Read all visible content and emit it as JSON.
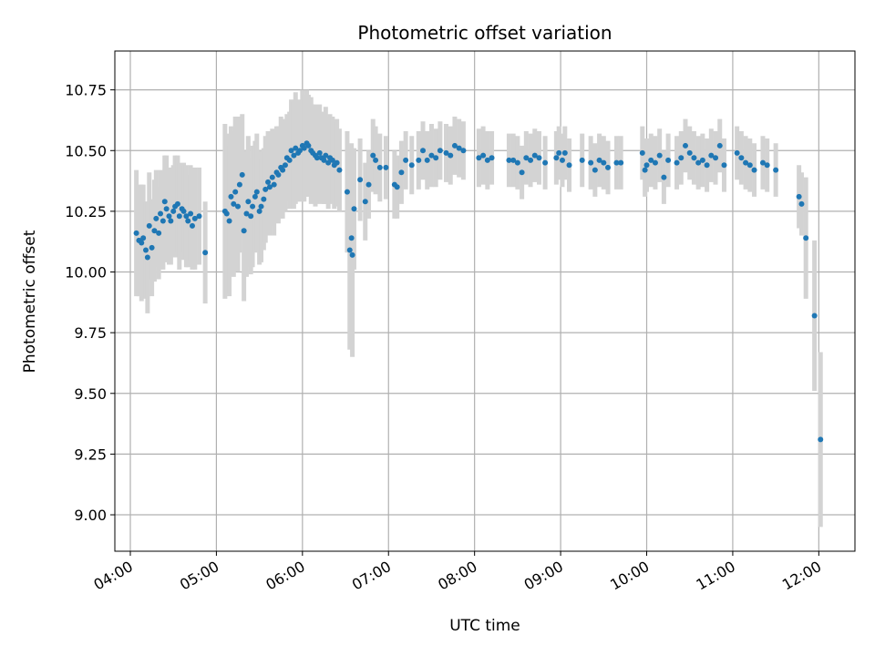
{
  "chart_data": {
    "type": "scatter",
    "title": "Photometric offset variation",
    "xlabel": "UTC time",
    "ylabel": "Photometric offset",
    "x_unit": "hours UTC",
    "xlim": [
      3.82,
      12.42
    ],
    "ylim": [
      8.85,
      10.91
    ],
    "grid": true,
    "x_ticks": [
      {
        "value": 4,
        "label": "04:00"
      },
      {
        "value": 5,
        "label": "05:00"
      },
      {
        "value": 6,
        "label": "06:00"
      },
      {
        "value": 7,
        "label": "07:00"
      },
      {
        "value": 8,
        "label": "08:00"
      },
      {
        "value": 9,
        "label": "09:00"
      },
      {
        "value": 10,
        "label": "10:00"
      },
      {
        "value": 11,
        "label": "11:00"
      },
      {
        "value": 12,
        "label": "12:00"
      }
    ],
    "y_ticks": [
      {
        "value": 9.0,
        "label": "9.00"
      },
      {
        "value": 9.25,
        "label": "9.25"
      },
      {
        "value": 9.5,
        "label": "9.50"
      },
      {
        "value": 9.75,
        "label": "9.75"
      },
      {
        "value": 10.0,
        "label": "10.00"
      },
      {
        "value": 10.25,
        "label": "10.25"
      },
      {
        "value": 10.5,
        "label": "10.50"
      },
      {
        "value": 10.75,
        "label": "10.75"
      }
    ],
    "colors": {
      "points": "#1f77b4",
      "errorbars": "#d3d3d3",
      "grid": "#b0b0b0"
    },
    "series": [
      {
        "points": [
          [
            4.07,
            10.16,
            0.26
          ],
          [
            4.1,
            10.13,
            0.23
          ],
          [
            4.13,
            10.12,
            0.24
          ],
          [
            4.15,
            10.14,
            0.22
          ],
          [
            4.18,
            10.09,
            0.2
          ],
          [
            4.2,
            10.06,
            0.23
          ],
          [
            4.22,
            10.19,
            0.22
          ],
          [
            4.25,
            10.1,
            0.2
          ],
          [
            4.28,
            10.17,
            0.21
          ],
          [
            4.3,
            10.22,
            0.2
          ],
          [
            4.33,
            10.16,
            0.19
          ],
          [
            4.35,
            10.24,
            0.18
          ],
          [
            4.38,
            10.21,
            0.2
          ],
          [
            4.4,
            10.29,
            0.19
          ],
          [
            4.42,
            10.26,
            0.22
          ],
          [
            4.45,
            10.23,
            0.2
          ],
          [
            4.47,
            10.21,
            0.18
          ],
          [
            4.5,
            10.25,
            0.19
          ],
          [
            4.52,
            10.27,
            0.21
          ],
          [
            4.55,
            10.28,
            0.2
          ],
          [
            4.57,
            10.23,
            0.22
          ],
          [
            4.6,
            10.26,
            0.18
          ],
          [
            4.62,
            10.25,
            0.2
          ],
          [
            4.65,
            10.23,
            0.21
          ],
          [
            4.67,
            10.21,
            0.19
          ],
          [
            4.7,
            10.24,
            0.2
          ],
          [
            4.72,
            10.19,
            0.18
          ],
          [
            4.75,
            10.22,
            0.21
          ],
          [
            4.8,
            10.23,
            0.2
          ],
          [
            4.87,
            10.08,
            0.21
          ],
          [
            5.1,
            10.25,
            0.36
          ],
          [
            5.12,
            10.24,
            0.33
          ],
          [
            5.15,
            10.21,
            0.31
          ],
          [
            5.17,
            10.31,
            0.29
          ],
          [
            5.2,
            10.28,
            0.3
          ],
          [
            5.22,
            10.33,
            0.31
          ],
          [
            5.25,
            10.27,
            0.27
          ],
          [
            5.27,
            10.36,
            0.28
          ],
          [
            5.3,
            10.4,
            0.25
          ],
          [
            5.32,
            10.17,
            0.29
          ],
          [
            5.35,
            10.24,
            0.26
          ],
          [
            5.37,
            10.29,
            0.27
          ],
          [
            5.4,
            10.23,
            0.24
          ],
          [
            5.42,
            10.27,
            0.25
          ],
          [
            5.45,
            10.31,
            0.23
          ],
          [
            5.47,
            10.33,
            0.24
          ],
          [
            5.5,
            10.25,
            0.22
          ],
          [
            5.52,
            10.27,
            0.23
          ],
          [
            5.55,
            10.3,
            0.21
          ],
          [
            5.57,
            10.34,
            0.22
          ],
          [
            5.6,
            10.37,
            0.21
          ],
          [
            5.62,
            10.35,
            0.2
          ],
          [
            5.65,
            10.39,
            0.2
          ],
          [
            5.67,
            10.36,
            0.21
          ],
          [
            5.7,
            10.41,
            0.19
          ],
          [
            5.72,
            10.4,
            0.2
          ],
          [
            5.75,
            10.43,
            0.21
          ],
          [
            5.77,
            10.42,
            0.2
          ],
          [
            5.8,
            10.44,
            0.19
          ],
          [
            5.82,
            10.47,
            0.18
          ],
          [
            5.85,
            10.46,
            0.2
          ],
          [
            5.87,
            10.5,
            0.21
          ],
          [
            5.9,
            10.48,
            0.22
          ],
          [
            5.92,
            10.51,
            0.23
          ],
          [
            5.95,
            10.49,
            0.2
          ],
          [
            5.97,
            10.5,
            0.21
          ],
          [
            6.0,
            10.52,
            0.23
          ],
          [
            6.02,
            10.51,
            0.22
          ],
          [
            6.05,
            10.53,
            0.22
          ],
          [
            6.07,
            10.52,
            0.21
          ],
          [
            6.1,
            10.5,
            0.22
          ],
          [
            6.12,
            10.49,
            0.2
          ],
          [
            6.15,
            10.48,
            0.21
          ],
          [
            6.17,
            10.47,
            0.19
          ],
          [
            6.2,
            10.49,
            0.2
          ],
          [
            6.22,
            10.47,
            0.19
          ],
          [
            6.25,
            10.46,
            0.18
          ],
          [
            6.27,
            10.48,
            0.2
          ],
          [
            6.3,
            10.45,
            0.19
          ],
          [
            6.32,
            10.47,
            0.18
          ],
          [
            6.35,
            10.46,
            0.18
          ],
          [
            6.37,
            10.44,
            0.18
          ],
          [
            6.4,
            10.45,
            0.18
          ],
          [
            6.43,
            10.42,
            0.17
          ],
          [
            6.52,
            10.33,
            0.25
          ],
          [
            6.55,
            10.09,
            0.41
          ],
          [
            6.57,
            10.14,
            0.39
          ],
          [
            6.58,
            10.07,
            0.42
          ],
          [
            6.6,
            10.26,
            0.25
          ],
          [
            6.67,
            10.38,
            0.17
          ],
          [
            6.73,
            10.29,
            0.16
          ],
          [
            6.77,
            10.36,
            0.14
          ],
          [
            6.82,
            10.48,
            0.15
          ],
          [
            6.85,
            10.46,
            0.14
          ],
          [
            6.9,
            10.43,
            0.14
          ],
          [
            6.97,
            10.43,
            0.13
          ],
          [
            7.07,
            10.36,
            0.14
          ],
          [
            7.1,
            10.35,
            0.13
          ],
          [
            7.15,
            10.41,
            0.13
          ],
          [
            7.2,
            10.46,
            0.12
          ],
          [
            7.27,
            10.44,
            0.12
          ],
          [
            7.35,
            10.46,
            0.12
          ],
          [
            7.4,
            10.5,
            0.12
          ],
          [
            7.45,
            10.46,
            0.12
          ],
          [
            7.5,
            10.48,
            0.13
          ],
          [
            7.55,
            10.47,
            0.12
          ],
          [
            7.6,
            10.5,
            0.12
          ],
          [
            7.67,
            10.49,
            0.12
          ],
          [
            7.72,
            10.48,
            0.12
          ],
          [
            7.77,
            10.52,
            0.12
          ],
          [
            7.82,
            10.51,
            0.12
          ],
          [
            7.87,
            10.5,
            0.12
          ],
          [
            8.05,
            10.47,
            0.12
          ],
          [
            8.1,
            10.48,
            0.12
          ],
          [
            8.15,
            10.46,
            0.12
          ],
          [
            8.2,
            10.47,
            0.11
          ],
          [
            8.4,
            10.46,
            0.11
          ],
          [
            8.45,
            10.46,
            0.11
          ],
          [
            8.5,
            10.45,
            0.11
          ],
          [
            8.55,
            10.41,
            0.11
          ],
          [
            8.6,
            10.47,
            0.11
          ],
          [
            8.65,
            10.46,
            0.11
          ],
          [
            8.7,
            10.48,
            0.11
          ],
          [
            8.75,
            10.47,
            0.11
          ],
          [
            8.82,
            10.45,
            0.11
          ],
          [
            8.95,
            10.47,
            0.11
          ],
          [
            8.98,
            10.49,
            0.11
          ],
          [
            9.02,
            10.46,
            0.11
          ],
          [
            9.05,
            10.49,
            0.11
          ],
          [
            9.1,
            10.44,
            0.11
          ],
          [
            9.25,
            10.46,
            0.11
          ],
          [
            9.35,
            10.45,
            0.11
          ],
          [
            9.4,
            10.42,
            0.11
          ],
          [
            9.45,
            10.46,
            0.11
          ],
          [
            9.5,
            10.45,
            0.11
          ],
          [
            9.55,
            10.43,
            0.11
          ],
          [
            9.65,
            10.45,
            0.11
          ],
          [
            9.7,
            10.45,
            0.11
          ],
          [
            9.95,
            10.49,
            0.11
          ],
          [
            9.98,
            10.42,
            0.11
          ],
          [
            10.0,
            10.44,
            0.11
          ],
          [
            10.05,
            10.46,
            0.11
          ],
          [
            10.1,
            10.45,
            0.11
          ],
          [
            10.15,
            10.48,
            0.11
          ],
          [
            10.2,
            10.39,
            0.11
          ],
          [
            10.25,
            10.46,
            0.11
          ],
          [
            10.35,
            10.45,
            0.11
          ],
          [
            10.4,
            10.47,
            0.11
          ],
          [
            10.45,
            10.52,
            0.11
          ],
          [
            10.5,
            10.49,
            0.11
          ],
          [
            10.55,
            10.47,
            0.11
          ],
          [
            10.6,
            10.45,
            0.11
          ],
          [
            10.65,
            10.46,
            0.11
          ],
          [
            10.7,
            10.44,
            0.11
          ],
          [
            10.75,
            10.48,
            0.11
          ],
          [
            10.8,
            10.47,
            0.11
          ],
          [
            10.85,
            10.52,
            0.11
          ],
          [
            10.9,
            10.44,
            0.11
          ],
          [
            11.05,
            10.49,
            0.11
          ],
          [
            11.1,
            10.47,
            0.11
          ],
          [
            11.15,
            10.45,
            0.11
          ],
          [
            11.2,
            10.44,
            0.11
          ],
          [
            11.25,
            10.42,
            0.11
          ],
          [
            11.35,
            10.45,
            0.11
          ],
          [
            11.4,
            10.44,
            0.11
          ],
          [
            11.5,
            10.42,
            0.11
          ],
          [
            11.77,
            10.31,
            0.13
          ],
          [
            11.8,
            10.28,
            0.13
          ],
          [
            11.85,
            10.14,
            0.25
          ],
          [
            11.95,
            9.82,
            0.31
          ],
          [
            12.02,
            9.31,
            0.36
          ]
        ]
      }
    ]
  }
}
